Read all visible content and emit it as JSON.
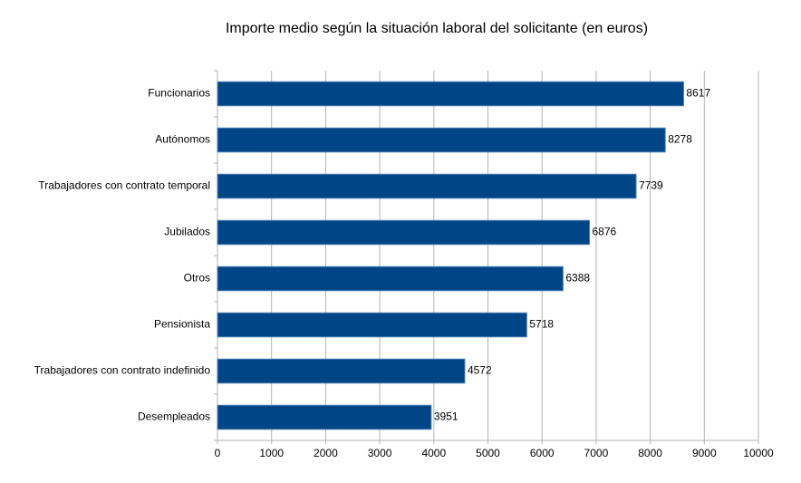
{
  "chart_data": {
    "type": "bar",
    "horizontal": true,
    "title": "Importe medio según la situación laboral del solicitante (en euros)",
    "categories": [
      "Funcionarios",
      "Autónomos",
      "Trabajadores con contrato temporal",
      "Jubilados",
      "Otros",
      "Pensionista",
      "Trabajadores con contrato indefinido",
      "Desempleados"
    ],
    "values": [
      8617,
      8278,
      7739,
      6876,
      6388,
      5718,
      4572,
      3951
    ],
    "color": "#004586",
    "xlim": [
      0,
      10000
    ],
    "xticks": [
      0,
      1000,
      2000,
      3000,
      4000,
      5000,
      6000,
      7000,
      8000,
      9000,
      10000
    ],
    "grid": true
  }
}
